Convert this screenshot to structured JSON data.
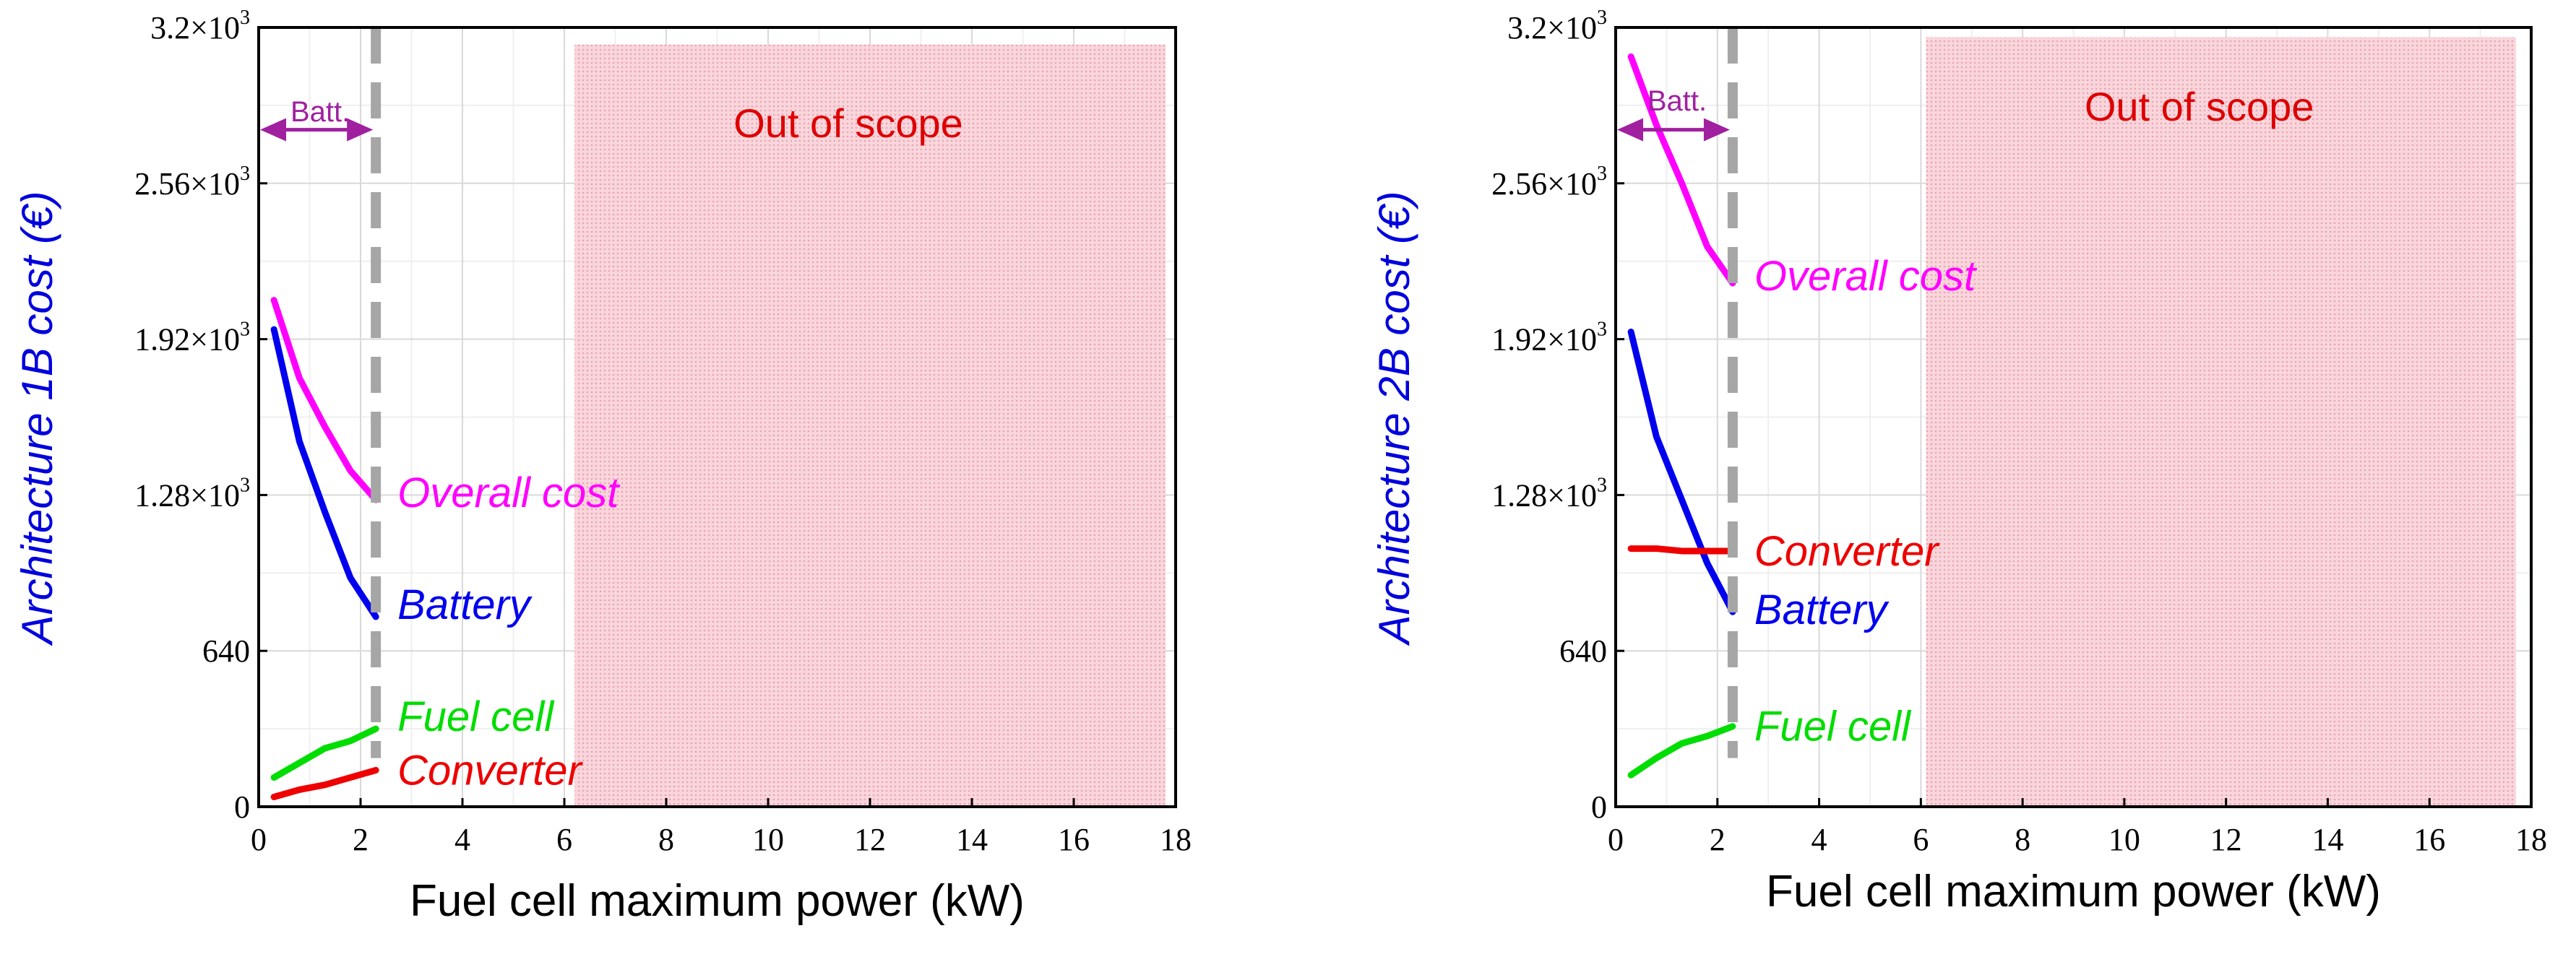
{
  "colors": {
    "overall": "#ff00ff",
    "battery": "#0000ee",
    "fuel_cell": "#00dd00",
    "converter": "#ee0000",
    "divider": "#a6a6a6",
    "scope_fill": "#f5c0c8",
    "scope_text": "#dd0000",
    "batt_arrow": "#a020a0",
    "ylabel": "#0000dd"
  },
  "chart_data": [
    {
      "type": "line",
      "title": "",
      "xlabel": "Fuel cell maximum power (kW)",
      "ylabel": "Architecture 1B cost (€)",
      "xlim": [
        0,
        18
      ],
      "ylim": [
        0,
        3200
      ],
      "xticks": [
        "0",
        "2",
        "4",
        "6",
        "8",
        "10",
        "12",
        "14",
        "16",
        "18"
      ],
      "yticks": [
        {
          "value": 0,
          "mant": "0",
          "exp": ""
        },
        {
          "value": 640,
          "mant": "640",
          "exp": ""
        },
        {
          "value": 1280,
          "mant": "1.28×10",
          "exp": "3"
        },
        {
          "value": 1920,
          "mant": "1.92×10",
          "exp": "3"
        },
        {
          "value": 2560,
          "mant": "2.56×10",
          "exp": "3"
        },
        {
          "value": 3200,
          "mant": "3.2×10",
          "exp": "3"
        }
      ],
      "grid": true,
      "series": [
        {
          "key": "overall",
          "name": "Overall cost",
          "x": [
            0.3,
            0.8,
            1.3,
            1.8,
            2.3
          ],
          "y": [
            2080,
            1760,
            1560,
            1380,
            1260
          ],
          "label_y": 1290
        },
        {
          "key": "battery",
          "name": "Battery",
          "x": [
            0.3,
            0.8,
            1.3,
            1.8,
            2.3
          ],
          "y": [
            1960,
            1500,
            1210,
            940,
            780
          ],
          "label_y": 830
        },
        {
          "key": "fuel_cell",
          "name": "Fuel cell",
          "x": [
            0.3,
            0.8,
            1.3,
            1.8,
            2.3
          ],
          "y": [
            120,
            180,
            240,
            270,
            320
          ],
          "label_y": 370
        },
        {
          "key": "converter",
          "name": "Converter",
          "x": [
            0.3,
            0.8,
            1.3,
            1.8,
            2.3
          ],
          "y": [
            40,
            70,
            90,
            120,
            150
          ],
          "label_y": 150
        }
      ],
      "battery_limit": {
        "x": 2.3,
        "label": "Batt.",
        "arrow_y": 2780
      },
      "out_of_scope": {
        "x_start": 6.2,
        "x_end": 17.8,
        "y_top": 3130,
        "label": "Out of scope"
      }
    },
    {
      "type": "line",
      "title": "",
      "xlabel": "Fuel cell maximum power (kW)",
      "ylabel": "Architecture 2B cost (€)",
      "xlim": [
        0,
        18
      ],
      "ylim": [
        0,
        3200
      ],
      "xticks": [
        "0",
        "2",
        "4",
        "6",
        "8",
        "10",
        "12",
        "14",
        "16",
        "18"
      ],
      "yticks": [
        {
          "value": 0,
          "mant": "0",
          "exp": ""
        },
        {
          "value": 640,
          "mant": "640",
          "exp": ""
        },
        {
          "value": 1280,
          "mant": "1.28×10",
          "exp": "3"
        },
        {
          "value": 1920,
          "mant": "1.92×10",
          "exp": "3"
        },
        {
          "value": 2560,
          "mant": "2.56×10",
          "exp": "3"
        },
        {
          "value": 3200,
          "mant": "3.2×10",
          "exp": "3"
        }
      ],
      "grid": true,
      "series": [
        {
          "key": "overall",
          "name": "Overall cost",
          "x": [
            0.3,
            0.8,
            1.3,
            1.8,
            2.3
          ],
          "y": [
            3080,
            2800,
            2560,
            2300,
            2150
          ],
          "label_y": 2180
        },
        {
          "key": "battery",
          "name": "Battery",
          "x": [
            0.3,
            0.8,
            1.3,
            1.8,
            2.3
          ],
          "y": [
            1950,
            1520,
            1260,
            1000,
            800
          ],
          "label_y": 810
        },
        {
          "key": "converter",
          "name": "Converter",
          "x": [
            0.3,
            0.8,
            1.3,
            1.8,
            2.3
          ],
          "y": [
            1060,
            1060,
            1050,
            1050,
            1050
          ],
          "label_y": 1050
        },
        {
          "key": "fuel_cell",
          "name": "Fuel cell",
          "x": [
            0.3,
            0.8,
            1.3,
            1.8,
            2.3
          ],
          "y": [
            130,
            200,
            260,
            290,
            330
          ],
          "label_y": 330
        }
      ],
      "battery_limit": {
        "x": 2.3,
        "label": "Batt.",
        "arrow_y": 2780
      },
      "out_of_scope": {
        "x_start": 6.1,
        "x_end": 17.7,
        "y_top": 3160,
        "label": "Out of scope"
      }
    }
  ]
}
